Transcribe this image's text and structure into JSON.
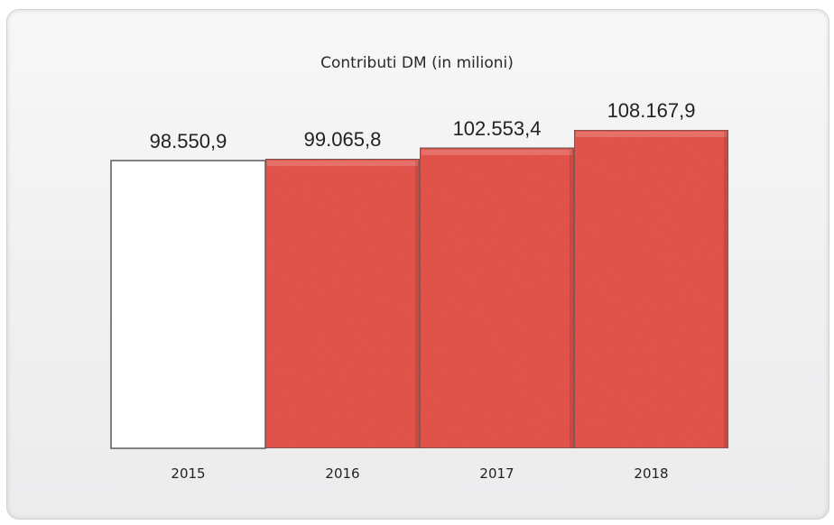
{
  "chart_data": {
    "type": "bar",
    "title": "Contributi DM (in milioni)",
    "categories": [
      "2015",
      "2016",
      "2017",
      "2018"
    ],
    "values": [
      98550.9,
      99065.8,
      102553.4,
      108167.9
    ],
    "value_labels": [
      "98.550,9",
      "99.065,8",
      "102.553,4",
      "108.167,9"
    ],
    "xlabel": "",
    "ylabel": "",
    "colors": [
      "#ffffff",
      "#e8574e",
      "#e8574e",
      "#e8574e"
    ],
    "edge_color": "#5a5a5a",
    "grid": false,
    "legend": "none"
  }
}
